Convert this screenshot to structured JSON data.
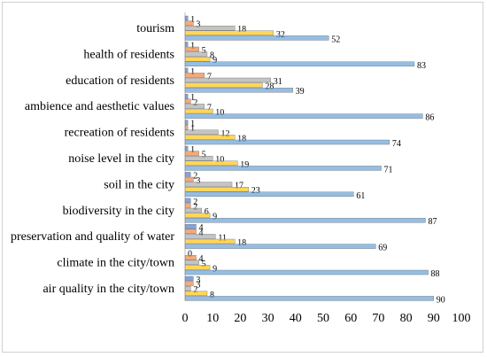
{
  "chart_data": {
    "type": "bar",
    "orientation": "horizontal",
    "title": "",
    "xlabel": "",
    "ylabel": "",
    "xlim": [
      0,
      100
    ],
    "x_ticks": [
      0,
      10,
      20,
      30,
      40,
      50,
      60,
      70,
      80,
      90,
      100
    ],
    "grid": false,
    "legend": "none",
    "categories": [
      "tourism",
      "health of residents",
      "education of residents",
      "ambience and aesthetic values",
      "recreation of residents",
      "noise level in the city",
      "soil in the city",
      "biodiversity in the city",
      "preservation and quality of water",
      "climate in the city/town",
      "air quality in the city/town"
    ],
    "series": [
      {
        "color": "#4472C4",
        "values": [
          1,
          1,
          1,
          1,
          1,
          1,
          2,
          2,
          4,
          0,
          3
        ]
      },
      {
        "color": "#ED7D31",
        "values": [
          3,
          5,
          7,
          2,
          1,
          5,
          3,
          2,
          4,
          4,
          3
        ]
      },
      {
        "color": "#A5A5A5",
        "values": [
          18,
          8,
          31,
          7,
          12,
          10,
          17,
          6,
          11,
          5,
          2
        ]
      },
      {
        "color": "#FFC000",
        "values": [
          32,
          9,
          28,
          10,
          18,
          19,
          23,
          9,
          18,
          9,
          8
        ]
      },
      {
        "color": "#5B9BD5",
        "values": [
          52,
          83,
          39,
          86,
          74,
          71,
          61,
          87,
          69,
          88,
          90
        ]
      }
    ]
  }
}
